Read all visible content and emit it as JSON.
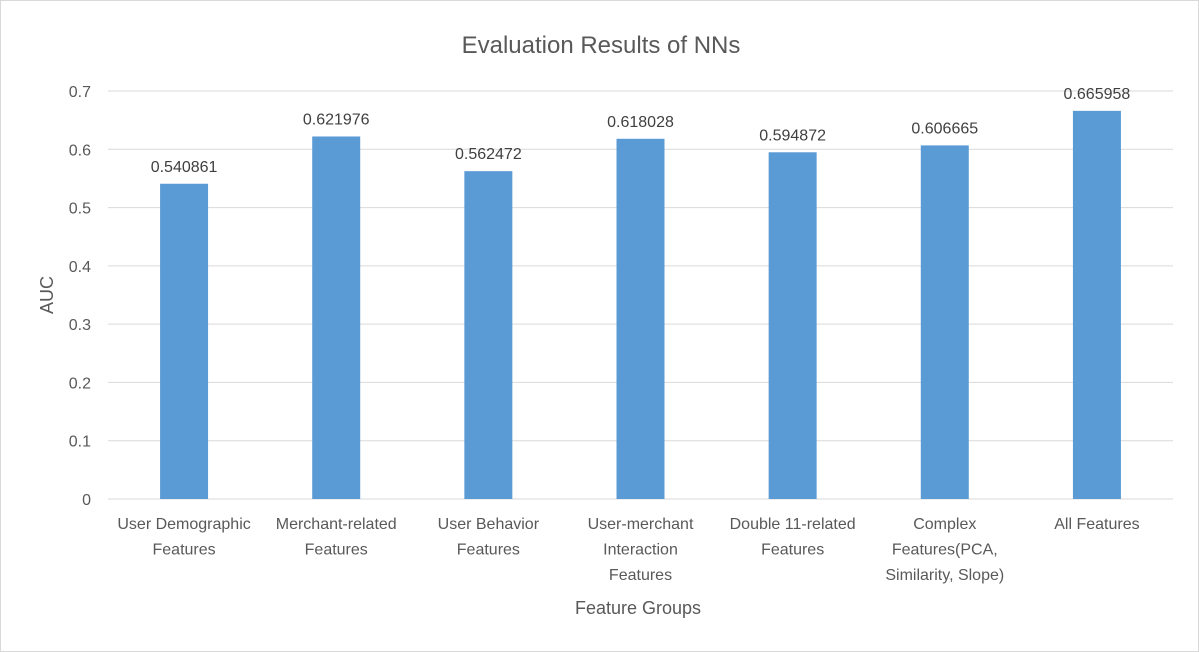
{
  "chart_data": {
    "type": "bar",
    "title": "Evaluation Results of NNs",
    "xlabel": "Feature Groups",
    "ylabel": "AUC",
    "ylim": [
      0,
      0.7
    ],
    "yticks": [
      "0",
      "0.1",
      "0.2",
      "0.3",
      "0.4",
      "0.5",
      "0.6",
      "0.7"
    ],
    "grid": true,
    "legend": "none",
    "bar_color": "#5b9bd5",
    "categories": [
      [
        "User Demographic",
        "Features"
      ],
      [
        "Merchant-related",
        "Features"
      ],
      [
        "User Behavior",
        "Features"
      ],
      [
        "User-merchant",
        "Interaction",
        "Features"
      ],
      [
        "Double 11-related",
        "Features"
      ],
      [
        "Complex",
        "Features(PCA,",
        "Similarity, Slope)"
      ],
      [
        "All Features"
      ]
    ],
    "values": [
      0.540861,
      0.621976,
      0.562472,
      0.618028,
      0.594872,
      0.606665,
      0.665958
    ],
    "value_labels": [
      "0.540861",
      "0.621976",
      "0.562472",
      "0.618028",
      "0.594872",
      "0.606665",
      "0.665958"
    ]
  }
}
